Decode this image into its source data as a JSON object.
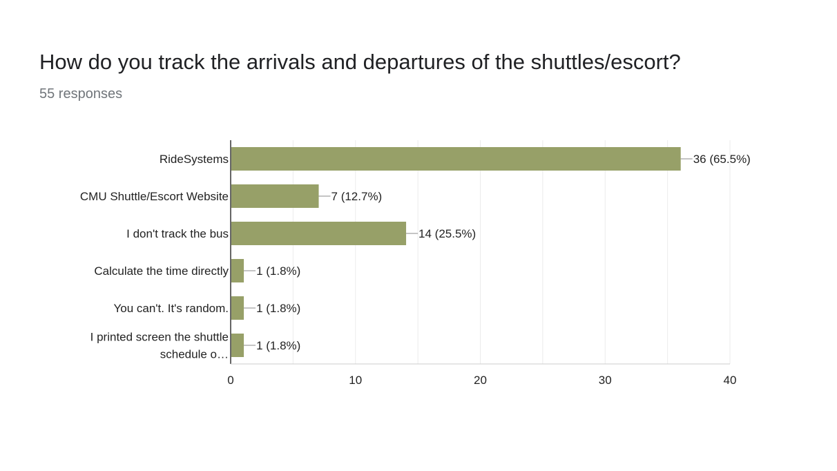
{
  "question": {
    "title": "How do you track the arrivals and departures of the shuttles/escort?",
    "responses": "55 responses"
  },
  "colors": {
    "bar": "#97a068",
    "grid": "#ebebeb",
    "axis": "#333333",
    "label": "#222222"
  },
  "chart_data": {
    "type": "bar",
    "orientation": "horizontal",
    "categories": [
      [
        "RideSystems"
      ],
      [
        "CMU Shuttle/Escort Website"
      ],
      [
        "I don't track the bus"
      ],
      [
        "Calculate the time directly"
      ],
      [
        "You can't. It's random."
      ],
      [
        "I printed screen the shuttle",
        "schedule o…"
      ]
    ],
    "values": [
      36,
      7,
      14,
      1,
      1,
      1
    ],
    "value_labels": [
      "36 (65.5%)",
      "7 (12.7%)",
      "14 (25.5%)",
      "1 (1.8%)",
      "1 (1.8%)",
      "1 (1.8%)"
    ],
    "xlim": [
      0,
      40
    ],
    "xticks": [
      0,
      10,
      20,
      30,
      40
    ],
    "grid": true
  }
}
